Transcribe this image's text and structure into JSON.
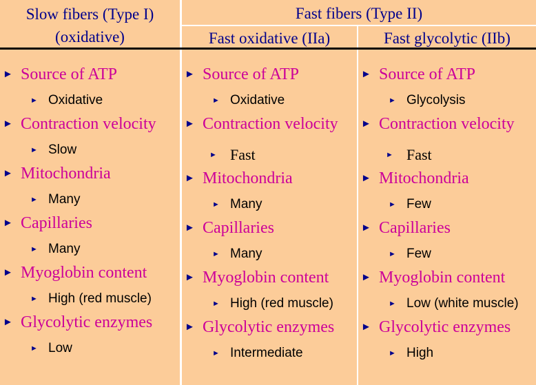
{
  "header": {
    "slow_title": "Slow fibers (Type I)",
    "slow_subtitle": "(oxidative)",
    "fast_title": "Fast fibers (Type II)",
    "fast_oxidative": "Fast oxidative (IIa)",
    "fast_glycolytic": "Fast glycolytic (IIb)"
  },
  "columns": {
    "slow": {
      "items": [
        {
          "label": "Source of ATP",
          "value": "Oxidative"
        },
        {
          "label": "Contraction velocity",
          "value": "Slow"
        },
        {
          "label": "Mitochondria",
          "value": "Many"
        },
        {
          "label": "Capillaries",
          "value": "Many"
        },
        {
          "label": "Myoglobin content",
          "value": "High (red muscle)"
        },
        {
          "label": "Glycolytic enzymes",
          "value": "Low"
        }
      ]
    },
    "fast_oxidative": {
      "items": [
        {
          "label": "Source of ATP",
          "value": "Oxidative"
        },
        {
          "label": "Contraction velocity",
          "value": "Fast"
        },
        {
          "label": "Mitochondria",
          "value": "Many"
        },
        {
          "label": "Capillaries",
          "value": "Many"
        },
        {
          "label": "Myoglobin content",
          "value": "High (red muscle)"
        },
        {
          "label": "Glycolytic enzymes",
          "value": "Intermediate"
        }
      ]
    },
    "fast_glycolytic": {
      "items": [
        {
          "label": "Source of ATP",
          "value": "Glycolysis"
        },
        {
          "label": "Contraction velocity",
          "value": "Fast"
        },
        {
          "label": "Mitochondria",
          "value": "Few"
        },
        {
          "label": "Capillaries",
          "value": "Few"
        },
        {
          "label": "Myoglobin content",
          "value": "Low (white muscle)"
        },
        {
          "label": "Glycolytic enzymes",
          "value": "High"
        }
      ]
    }
  },
  "bullet_icon": "right-triangle-bullet"
}
